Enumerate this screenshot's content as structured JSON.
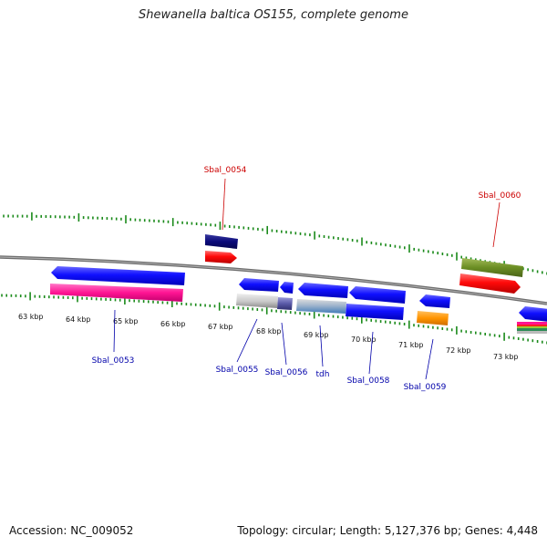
{
  "title": "Shewanella baltica OS155, complete genome",
  "footer": {
    "accession": "Accession: NC_009052",
    "summary": "Topology: circular; Length: 5,127,376 bp; Genes: 4,448"
  },
  "colors": {
    "backbone": "#808080",
    "tick": "#1a8a1a",
    "forward_label": "#cc0000",
    "reverse_label": "#0000aa"
  },
  "scale": {
    "ticks": [
      "63 kbp",
      "64 kbp",
      "65 kbp",
      "66 kbp",
      "67 kbp",
      "68 kbp",
      "69 kbp",
      "70 kbp",
      "71 kbp",
      "72 kbp",
      "73 kbp"
    ]
  },
  "gene_labels": {
    "Sbal_0053": "Sbal_0053",
    "Sbal_0054": "Sbal_0054",
    "Sbal_0055": "Sbal_0055",
    "Sbal_0056": "Sbal_0056",
    "tdh": "tdh",
    "Sbal_0058": "Sbal_0058",
    "Sbal_0059": "Sbal_0059",
    "Sbal_0060": "Sbal_0060"
  }
}
